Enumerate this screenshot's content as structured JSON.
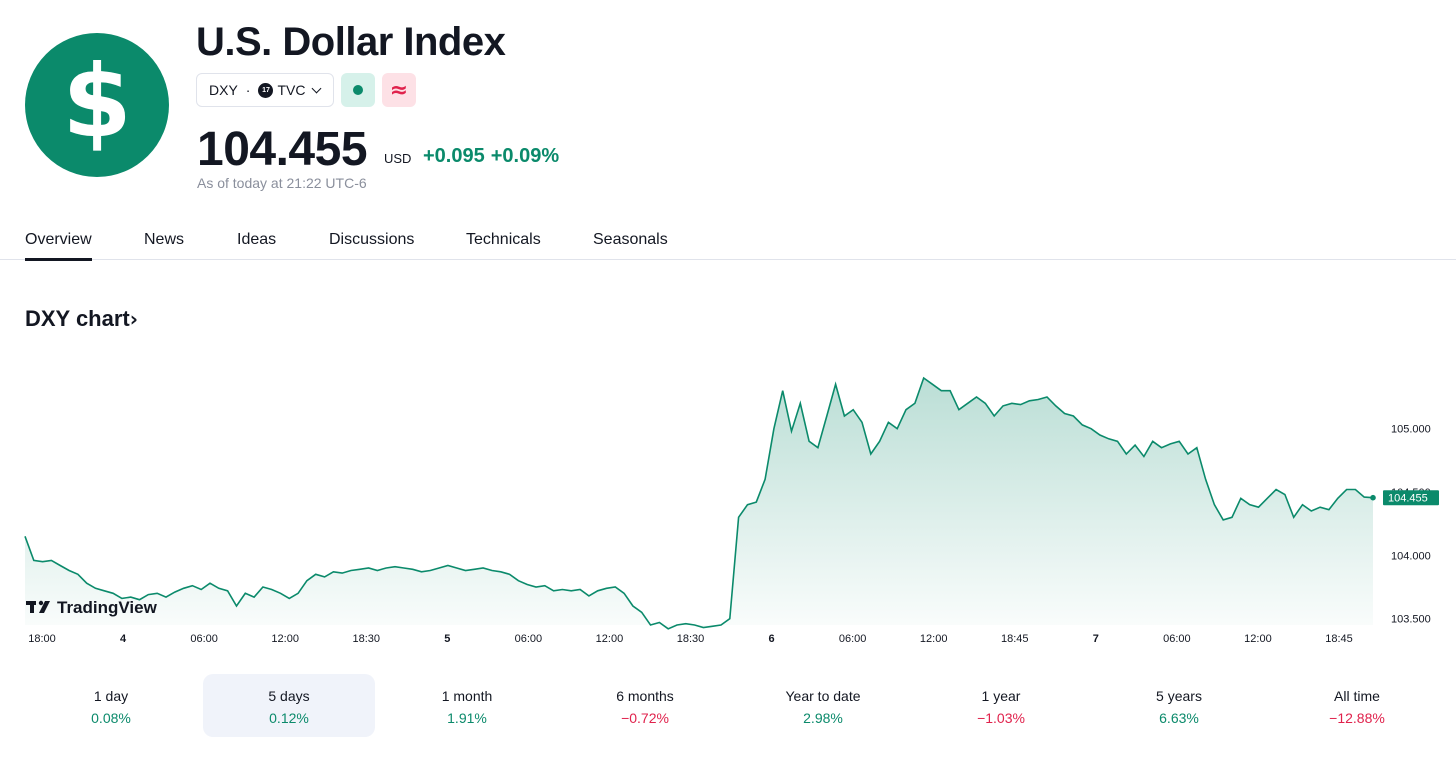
{
  "header": {
    "logo_glyph": "$",
    "title": "U.S. Dollar Index",
    "symbol": "DXY",
    "exchange_badge": "17",
    "exchange": "TVC",
    "market_status_icon": "dot-icon",
    "delay_icon": "approx-icon",
    "delay_glyph": "≈",
    "price": "104.455",
    "currency": "USD",
    "change_abs": "+0.095",
    "change_pct": "+0.09%",
    "as_of": "As of today at 21:22 UTC-6"
  },
  "tabs": [
    {
      "label": "Overview",
      "active": true
    },
    {
      "label": "News"
    },
    {
      "label": "Ideas"
    },
    {
      "label": "Discussions"
    },
    {
      "label": "Technicals"
    },
    {
      "label": "Seasonals"
    }
  ],
  "chart_section": {
    "title": "DXY chart",
    "arrow": "›",
    "watermark": "TradingView",
    "last_price_label": "104.455"
  },
  "chart_data": {
    "type": "area",
    "x_tick_labels": [
      "18:00",
      "4",
      "06:00",
      "12:00",
      "18:30",
      "5",
      "06:00",
      "12:00",
      "18:30",
      "6",
      "06:00",
      "12:00",
      "18:45",
      "7",
      "06:00",
      "12:00",
      "18:45"
    ],
    "y_tick_labels": [
      "105.000",
      "104.500",
      "104.000",
      "103.500"
    ],
    "ylim": [
      103.45,
      105.4
    ],
    "color": "#0b8a6b",
    "grid": false,
    "series": [
      {
        "values": [
          104.15,
          103.96,
          103.95,
          103.96,
          103.92,
          103.88,
          103.85,
          103.78,
          103.74,
          103.72,
          103.7,
          103.66,
          103.67,
          103.65,
          103.69,
          103.7,
          103.67,
          103.71,
          103.74,
          103.76,
          103.73,
          103.78,
          103.74,
          103.72,
          103.6,
          103.7,
          103.67,
          103.75,
          103.73,
          103.7,
          103.66,
          103.7,
          103.8,
          103.85,
          103.83,
          103.87,
          103.86,
          103.88,
          103.89,
          103.9,
          103.88,
          103.9,
          103.91,
          103.9,
          103.89,
          103.87,
          103.88,
          103.9,
          103.92,
          103.9,
          103.88,
          103.89,
          103.9,
          103.88,
          103.87,
          103.85,
          103.8,
          103.77,
          103.75,
          103.76,
          103.72,
          103.73,
          103.72,
          103.73,
          103.68,
          103.72,
          103.74,
          103.75,
          103.7,
          103.6,
          103.55,
          103.45,
          103.47,
          103.42,
          103.45,
          103.46,
          103.45,
          103.43,
          103.44,
          103.45,
          103.5,
          104.3,
          104.4,
          104.42,
          104.6,
          105.0,
          105.3,
          104.98,
          105.2,
          104.9,
          104.85,
          105.1,
          105.35,
          105.1,
          105.15,
          105.05,
          104.8,
          104.9,
          105.05,
          105.0,
          105.15,
          105.2,
          105.4,
          105.35,
          105.3,
          105.3,
          105.15,
          105.2,
          105.25,
          105.2,
          105.1,
          105.18,
          105.2,
          105.19,
          105.22,
          105.23,
          105.25,
          105.18,
          105.12,
          105.1,
          105.03,
          105.0,
          104.95,
          104.92,
          104.9,
          104.8,
          104.87,
          104.78,
          104.9,
          104.85,
          104.88,
          104.9,
          104.8,
          104.85,
          104.6,
          104.4,
          104.28,
          104.3,
          104.45,
          104.4,
          104.38,
          104.45,
          104.52,
          104.48,
          104.3,
          104.4,
          104.35,
          104.38,
          104.36,
          104.45,
          104.52,
          104.52,
          104.46,
          104.455
        ]
      }
    ]
  },
  "periods": [
    {
      "label": "1 day",
      "value": "0.08%",
      "dir": "pos"
    },
    {
      "label": "5 days",
      "value": "0.12%",
      "dir": "pos",
      "active": true
    },
    {
      "label": "1 month",
      "value": "1.91%",
      "dir": "pos"
    },
    {
      "label": "6 months",
      "value": "−0.72%",
      "dir": "neg"
    },
    {
      "label": "Year to date",
      "value": "2.98%",
      "dir": "pos"
    },
    {
      "label": "1 year",
      "value": "−1.03%",
      "dir": "neg"
    },
    {
      "label": "5 years",
      "value": "6.63%",
      "dir": "pos"
    },
    {
      "label": "All time",
      "value": "−12.88%",
      "dir": "neg"
    }
  ]
}
